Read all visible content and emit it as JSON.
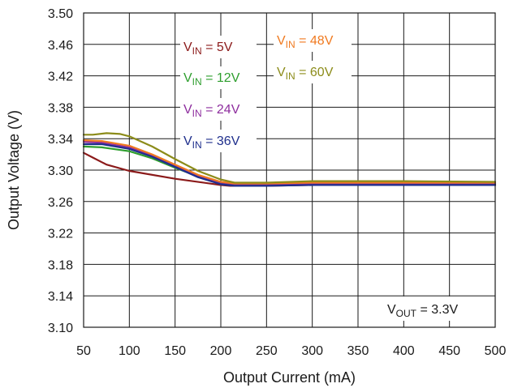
{
  "chart_data": {
    "type": "line",
    "xlabel": "Output Current (mA)",
    "ylabel": "Output Voltage (V)",
    "xlim": [
      50,
      500
    ],
    "ylim": [
      3.1,
      3.5
    ],
    "x_ticks": [
      50,
      100,
      150,
      200,
      250,
      300,
      350,
      400,
      450,
      500
    ],
    "y_ticks": [
      "3.10",
      "3.14",
      "3.18",
      "3.22",
      "3.26",
      "3.30",
      "3.34",
      "3.38",
      "3.42",
      "3.46",
      "3.50"
    ],
    "grid": true,
    "legend_position": "top-center",
    "annotation": {
      "main": "V",
      "sub": "OUT",
      "rest": " = 3.3V"
    },
    "series": [
      {
        "name": "VIN = 5V",
        "label_main": "V",
        "label_sub": "IN",
        "label_rest": " = 5V",
        "color": "#8b1a1a",
        "points": [
          [
            50,
            3.322
          ],
          [
            60,
            3.316
          ],
          [
            75,
            3.307
          ],
          [
            100,
            3.299
          ],
          [
            150,
            3.289
          ],
          [
            200,
            3.281
          ],
          [
            210,
            3.28
          ],
          [
            250,
            3.28
          ],
          [
            300,
            3.281
          ],
          [
            350,
            3.281
          ],
          [
            400,
            3.281
          ],
          [
            450,
            3.281
          ],
          [
            500,
            3.281
          ]
        ]
      },
      {
        "name": "VIN = 12V",
        "label_main": "V",
        "label_sub": "IN",
        "label_rest": " = 12V",
        "color": "#2e9e2e",
        "points": [
          [
            50,
            3.33
          ],
          [
            70,
            3.329
          ],
          [
            100,
            3.324
          ],
          [
            125,
            3.315
          ],
          [
            150,
            3.303
          ],
          [
            175,
            3.292
          ],
          [
            200,
            3.283
          ],
          [
            215,
            3.281
          ],
          [
            250,
            3.281
          ],
          [
            300,
            3.282
          ],
          [
            400,
            3.282
          ],
          [
            500,
            3.282
          ]
        ]
      },
      {
        "name": "VIN = 24V",
        "label_main": "V",
        "label_sub": "IN",
        "label_rest": " = 24V",
        "color": "#8e2e9e",
        "points": [
          [
            50,
            3.336
          ],
          [
            70,
            3.335
          ],
          [
            100,
            3.329
          ],
          [
            125,
            3.318
          ],
          [
            150,
            3.305
          ],
          [
            175,
            3.292
          ],
          [
            200,
            3.283
          ],
          [
            215,
            3.281
          ],
          [
            250,
            3.281
          ],
          [
            300,
            3.283
          ],
          [
            400,
            3.283
          ],
          [
            500,
            3.283
          ]
        ]
      },
      {
        "name": "VIN = 36V",
        "label_main": "V",
        "label_sub": "IN",
        "label_rest": " = 36V",
        "color": "#1f2f8c",
        "points": [
          [
            50,
            3.333
          ],
          [
            70,
            3.333
          ],
          [
            100,
            3.327
          ],
          [
            125,
            3.317
          ],
          [
            150,
            3.304
          ],
          [
            175,
            3.291
          ],
          [
            200,
            3.282
          ],
          [
            215,
            3.28
          ],
          [
            250,
            3.28
          ],
          [
            300,
            3.281
          ],
          [
            400,
            3.281
          ],
          [
            500,
            3.281
          ]
        ]
      },
      {
        "name": "VIN = 48V",
        "label_main": "V",
        "label_sub": "IN",
        "label_rest": " = 48V",
        "color": "#f07a20",
        "points": [
          [
            50,
            3.338
          ],
          [
            70,
            3.337
          ],
          [
            100,
            3.331
          ],
          [
            125,
            3.32
          ],
          [
            150,
            3.307
          ],
          [
            175,
            3.294
          ],
          [
            200,
            3.285
          ],
          [
            215,
            3.283
          ],
          [
            250,
            3.283
          ],
          [
            300,
            3.284
          ],
          [
            400,
            3.284
          ],
          [
            500,
            3.284
          ]
        ]
      },
      {
        "name": "VIN = 60V",
        "label_main": "V",
        "label_sub": "IN",
        "label_rest": " = 60V",
        "color": "#8c8c1a",
        "points": [
          [
            50,
            3.345
          ],
          [
            60,
            3.345
          ],
          [
            75,
            3.347
          ],
          [
            90,
            3.346
          ],
          [
            100,
            3.343
          ],
          [
            125,
            3.33
          ],
          [
            150,
            3.314
          ],
          [
            175,
            3.299
          ],
          [
            200,
            3.288
          ],
          [
            215,
            3.284
          ],
          [
            250,
            3.284
          ],
          [
            300,
            3.286
          ],
          [
            400,
            3.286
          ],
          [
            500,
            3.285
          ]
        ]
      }
    ]
  }
}
